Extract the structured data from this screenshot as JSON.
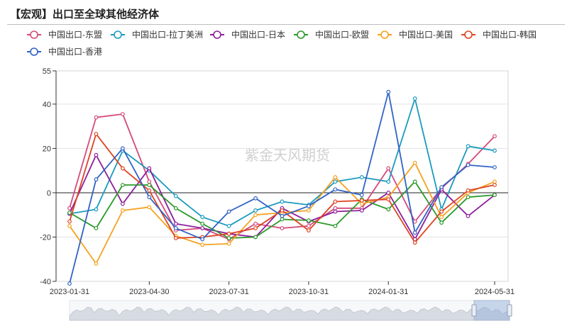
{
  "title": "【宏观】出口至全球其他经济体",
  "watermark": "紫金天风期货",
  "chart_data": {
    "type": "line",
    "x": [
      "2023-01-31",
      "2023-02-28",
      "2023-03-31",
      "2023-04-30",
      "2023-05-31",
      "2023-06-30",
      "2023-07-31",
      "2023-08-31",
      "2023-09-30",
      "2023-10-31",
      "2023-11-30",
      "2023-12-31",
      "2024-01-31",
      "2024-02-29",
      "2024-03-31",
      "2024-04-30",
      "2024-05-31"
    ],
    "x_tick_labels": [
      "2023-01-31",
      "2023-04-30",
      "2023-07-31",
      "2023-10-31",
      "2024-01-31",
      "2024-05-31"
    ],
    "ylim": [
      -40,
      55
    ],
    "y_ticks": [
      55,
      40,
      20,
      0,
      -20,
      -40
    ],
    "grid": true,
    "legend_position": "top-left",
    "series": [
      {
        "name": "中国出口-东盟",
        "color": "#d54a7c",
        "values": [
          -7,
          34,
          35.5,
          5,
          -17,
          -16,
          -21,
          -14,
          -16,
          -15,
          -7,
          -7,
          11,
          -13,
          2,
          13,
          25.5
        ]
      },
      {
        "name": "中国出口-拉丁美洲",
        "color": "#1a9bbd",
        "values": [
          -9.5,
          -7.5,
          19,
          10,
          -1.5,
          -11,
          -15,
          -8,
          -4,
          -5.5,
          5,
          7,
          5,
          42.5,
          -7.5,
          21,
          19
        ]
      },
      {
        "name": "中国出口-日本",
        "color": "#8e1e9c",
        "values": [
          -9.5,
          17,
          -5,
          11,
          -14,
          -16,
          -18.5,
          -20,
          -7,
          -13,
          -8.5,
          -8,
          0,
          -21,
          1.5,
          -10.5,
          -1
        ]
      },
      {
        "name": "中国出口-欧盟",
        "color": "#2b9a2b",
        "values": [
          -9,
          -16,
          3.5,
          3.5,
          -7,
          -14,
          -20.5,
          -20,
          -12,
          -12.5,
          -15,
          -3,
          -7.5,
          5,
          -13.5,
          -2,
          -1
        ]
      },
      {
        "name": "中国出口-美国",
        "color": "#f5a21f",
        "values": [
          -15,
          -32,
          -8,
          -6.5,
          -19.5,
          -23.5,
          -23,
          -10,
          -9,
          -8,
          7,
          -5,
          -2,
          13.5,
          -11,
          0,
          5
        ]
      },
      {
        "name": "中国出口-韩国",
        "color": "#dd4422",
        "values": [
          -13,
          26.5,
          11,
          1,
          -20.5,
          -20,
          -18.5,
          -16,
          -8,
          -17,
          -4,
          -3.5,
          -3,
          -22.5,
          -8.5,
          1,
          3.5
        ]
      },
      {
        "name": "中国出口-香港",
        "color": "#3163c4",
        "values": [
          -41,
          6,
          20,
          -2,
          -16,
          -21,
          -8.5,
          -2.5,
          -10.5,
          -6,
          1.5,
          -1,
          45.5,
          -18,
          2.5,
          12.5,
          11.5
        ]
      }
    ]
  }
}
